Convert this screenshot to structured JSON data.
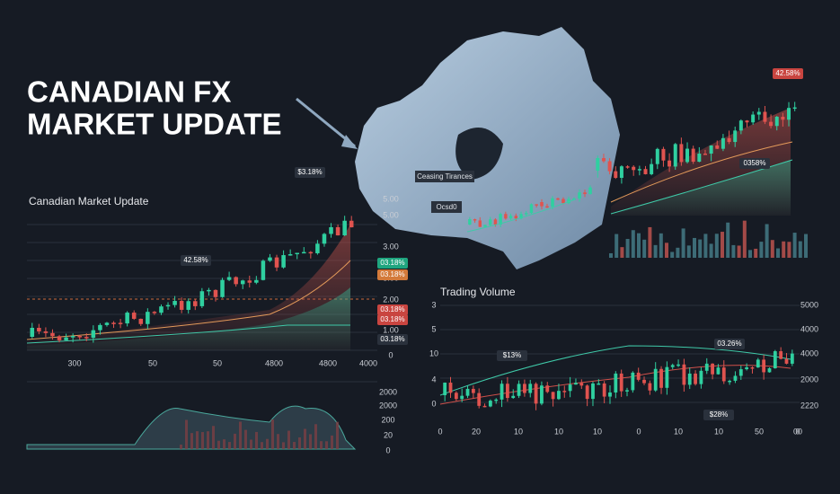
{
  "header": {
    "title_lines": [
      "CANADIAN FX",
      "MARKET UPDATE"
    ]
  },
  "left_panel": {
    "title": "Canadian Market Update",
    "x_labels": [
      "300",
      "50",
      "50",
      "4800",
      "4800",
      "4000"
    ],
    "y_labels": [
      "5.00",
      "5.00",
      "3.00",
      "3.00",
      "2.00",
      "2.00",
      "1.00",
      "0"
    ],
    "badges": [
      "$3.18%",
      "42.58%",
      "03.18%",
      "03.18%",
      "03.18%",
      "03.18%",
      "03.18%"
    ]
  },
  "volume_panel": {
    "y_labels": [
      "2000",
      "2000",
      "200",
      "20",
      "0"
    ]
  },
  "map": {
    "labels": [
      "Ceasing Tirances",
      "Ocsd0"
    ]
  },
  "top_right": {
    "badges": [
      "42.58%",
      "0358%"
    ]
  },
  "bottom_right": {
    "title": "Trading Volume",
    "left_labels": [
      "3",
      "5",
      "10",
      "4",
      "0"
    ],
    "right_labels": [
      "5000",
      "4000",
      "4000",
      "2000",
      "2220"
    ],
    "x_labels": [
      "0",
      "20",
      "10",
      "10",
      "10",
      "0",
      "10",
      "10",
      "50",
      "00",
      "0"
    ],
    "badges": [
      "$13%",
      "03.26%",
      "$28%"
    ]
  }
}
